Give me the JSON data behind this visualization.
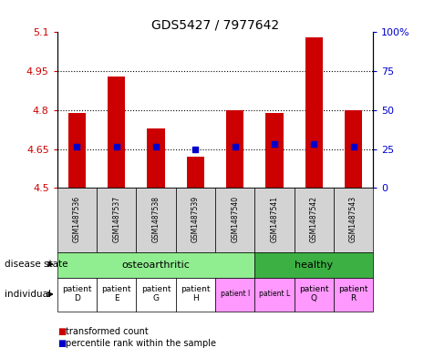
{
  "title": "GDS5427 / 7977642",
  "samples": [
    "GSM1487536",
    "GSM1487537",
    "GSM1487538",
    "GSM1487539",
    "GSM1487540",
    "GSM1487541",
    "GSM1487542",
    "GSM1487543"
  ],
  "transformed_counts": [
    4.79,
    4.93,
    4.73,
    4.62,
    4.8,
    4.79,
    5.08,
    4.8
  ],
  "percentile_ranks": [
    4.66,
    4.66,
    4.66,
    4.65,
    4.66,
    4.67,
    4.67,
    4.66
  ],
  "ymin": 4.5,
  "ymax": 5.1,
  "y_ticks_left": [
    4.5,
    4.65,
    4.8,
    4.95,
    5.1
  ],
  "y_ticks_right_vals": [
    0,
    25,
    50,
    75,
    100
  ],
  "bar_color": "#CC0000",
  "dot_color": "#0000CC",
  "bar_base": 4.5,
  "bar_width": 0.45,
  "dot_size": 22,
  "left_axis_color": "#CC0000",
  "right_axis_color": "#0000CC",
  "sample_box_color": "#D3D3D3",
  "oa_color": "#90EE90",
  "healthy_color": "#3CB043",
  "ind_white_color": "#FFFFFF",
  "ind_pink_color": "#FF99FF",
  "title_fontsize": 10,
  "individual_labels": [
    "patient\nD",
    "patient\nE",
    "patient\nG",
    "patient\nH",
    "patient I",
    "patient L",
    "patient\nQ",
    "patient\nR"
  ],
  "ind_colors": [
    "#FFFFFF",
    "#FFFFFF",
    "#FFFFFF",
    "#FFFFFF",
    "#FF99FF",
    "#FF99FF",
    "#FF99FF",
    "#FF99FF"
  ],
  "ind_large": [
    true,
    true,
    true,
    true,
    false,
    false,
    true,
    true
  ]
}
